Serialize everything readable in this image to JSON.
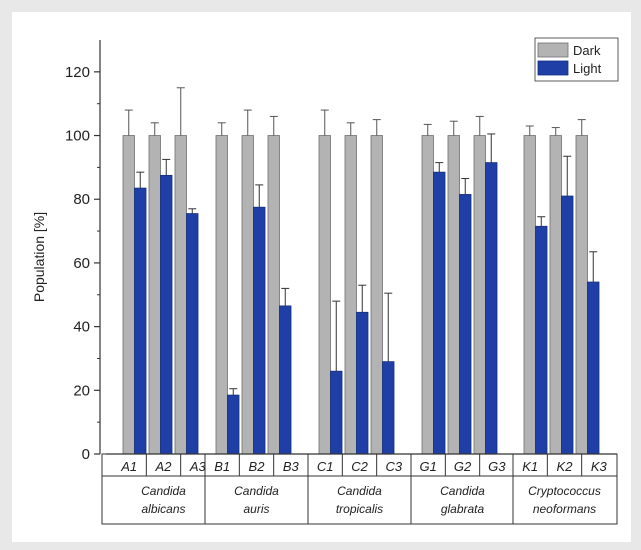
{
  "chart_data": {
    "type": "bar",
    "ylabel": "Population [%]",
    "ylim": [
      0,
      130
    ],
    "yticks": [
      0,
      20,
      40,
      60,
      80,
      100,
      120
    ],
    "legend_position": "top-right",
    "colors": {
      "Dark": "#b3b3b3",
      "Light": "#1f3fa6"
    },
    "categories": [
      "A1",
      "A2",
      "A3",
      "B1",
      "B2",
      "B3",
      "C1",
      "C2",
      "C3",
      "G1",
      "G2",
      "G3",
      "K1",
      "K2",
      "K3"
    ],
    "groups": [
      {
        "label_line1": "Candida",
        "label_line2": "albicans",
        "categories": [
          "A1",
          "A2",
          "A3"
        ]
      },
      {
        "label_line1": "Candida",
        "label_line2": "auris",
        "categories": [
          "B1",
          "B2",
          "B3"
        ]
      },
      {
        "label_line1": "Candida",
        "label_line2": "tropicalis",
        "categories": [
          "C1",
          "C2",
          "C3"
        ]
      },
      {
        "label_line1": "Candida",
        "label_line2": "glabrata",
        "categories": [
          "G1",
          "G2",
          "G3"
        ]
      },
      {
        "label_line1": "Cryptococcus",
        "label_line2": "neoformans",
        "categories": [
          "K1",
          "K2",
          "K3"
        ]
      }
    ],
    "series": [
      {
        "name": "Dark",
        "values": [
          100,
          100,
          100,
          100,
          100,
          100,
          100,
          100,
          100,
          100,
          100,
          100,
          100,
          100,
          100
        ],
        "errors": [
          8,
          4,
          15,
          4,
          8,
          6,
          8,
          4,
          5,
          3.5,
          4.5,
          6,
          3,
          2.5,
          5
        ]
      },
      {
        "name": "Light",
        "values": [
          83.5,
          87.5,
          75.5,
          18.5,
          77.5,
          46.5,
          26,
          44.5,
          29,
          88.5,
          81.5,
          91.5,
          71.5,
          81,
          54
        ],
        "errors": [
          5,
          5,
          1.5,
          2,
          7,
          5.5,
          22,
          8.5,
          21.5,
          3,
          5,
          9,
          3,
          12.5,
          9.5
        ]
      }
    ]
  }
}
